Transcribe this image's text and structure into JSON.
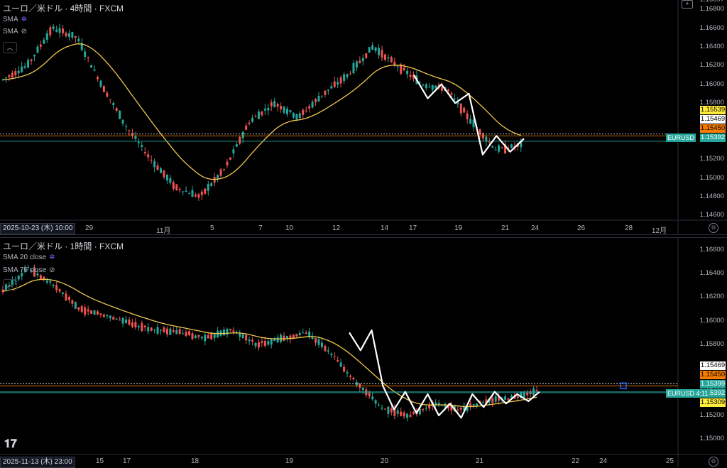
{
  "colors": {
    "up": "#26a69a",
    "down": "#ef5350",
    "sma": "#f2c94c",
    "hand": "#ffffff",
    "orange": "#f57c00",
    "yellow": "#ffeb3b",
    "teal": "#26a69a"
  },
  "pane1": {
    "title": "ユーロ／米ドル · 4時間 · FXCM",
    "indicators": [
      "SMA",
      "SMA"
    ],
    "date_tag": "2025-10-23 (木)  10:00",
    "x_ticks": [
      "29",
      "11月",
      "5",
      "7",
      "10",
      "12",
      "14",
      "17",
      "19",
      "21",
      "24",
      "26",
      "28",
      "12月"
    ],
    "y_ticks": [
      "1.16897",
      "1.16800",
      "1.16600",
      "1.16400",
      "1.16200",
      "1.16000",
      "1.15800",
      "1.15600",
      "1.15400",
      "1.15200",
      "1.15000",
      "1.14800",
      "1.14600"
    ],
    "price_tags": [
      "1.15539",
      "1.15469",
      "1.15450",
      "1.15392"
    ],
    "symbol": "EURUSD"
  },
  "pane2": {
    "title": "ユーロ／米ドル · 1時間 · FXCM",
    "indicators": [
      "SMA 20 close",
      "SMA 75 close"
    ],
    "date_tag": "2025-11-13 (木)  23:00",
    "x_ticks": [
      "15",
      "17",
      "18",
      "19",
      "20",
      "21",
      "22",
      "24",
      "25"
    ],
    "y_ticks": [
      "1.16600",
      "1.16400",
      "1.16200",
      "1.16000",
      "1.15800",
      "1.15600",
      "1.15400",
      "1.15200",
      "1.15000"
    ],
    "price_tags": [
      "1.15469",
      "1.15450",
      "1.15399",
      "1.15392",
      "1.15309"
    ],
    "symbol": "EURUSD",
    "timer": "4:11"
  },
  "chart_data": [
    {
      "type": "candlestick",
      "title": "ユーロ／米ドル · 4時間 · FXCM",
      "series": [
        {
          "name": "SMA"
        }
      ],
      "ylim": [
        1.1455,
        1.169
      ],
      "trend_line_points": [
        1.161,
        1.1585,
        1.16,
        1.158,
        1.159,
        1.1525,
        1.1545,
        1.1528,
        1.1542
      ]
    },
    {
      "type": "candlestick",
      "title": "ユーロ／米ドル · 1時間 · FXCM",
      "series": [
        {
          "name": "SMA 20 close"
        }
      ],
      "ylim": [
        1.149,
        1.167
      ],
      "trend_line_points": [
        1.159,
        1.1575,
        1.1592,
        1.1545,
        1.1525,
        1.154,
        1.1522,
        1.1538,
        1.152,
        1.153,
        1.1518,
        1.1538,
        1.1527,
        1.154,
        1.153,
        1.1538,
        1.1532,
        1.154
      ]
    }
  ]
}
